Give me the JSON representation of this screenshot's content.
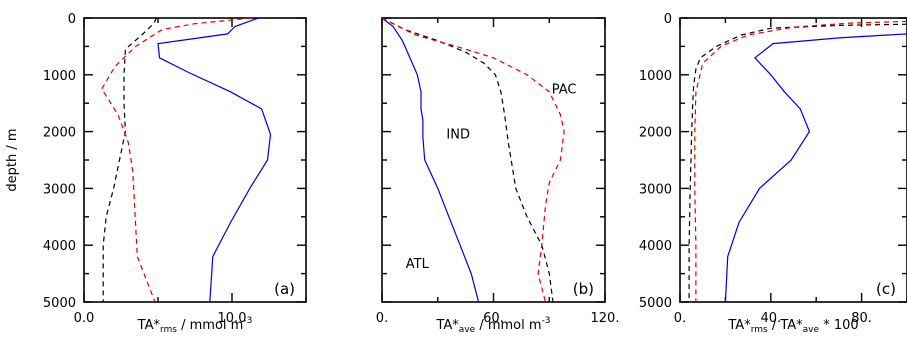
{
  "chart_data": [
    {
      "type": "line",
      "panel_label": "(a)",
      "xlabel_main": "TA*",
      "xlabel_sub": "rms",
      "xlabel_rest": " /  mmol m",
      "xlabel_sup": "-3",
      "ylabel": "depth / m",
      "xlim": [
        0,
        15
      ],
      "ylim": [
        5000,
        0
      ],
      "x_ticks": [
        {
          "v": 0,
          "label": "0.0"
        },
        {
          "v": 10,
          "label": "10.0"
        }
      ],
      "y_ticks": [
        {
          "v": 0,
          "label": "0"
        },
        {
          "v": 1000,
          "label": "1000"
        },
        {
          "v": 2000,
          "label": "2000"
        },
        {
          "v": 3000,
          "label": "3000"
        },
        {
          "v": 4000,
          "label": "4000"
        },
        {
          "v": 5000,
          "label": "5000"
        }
      ],
      "series": [
        {
          "key": "atl",
          "color": "#0000dd",
          "dash": "",
          "points": [
            [
              11.8,
              0
            ],
            [
              10.2,
              150
            ],
            [
              9.7,
              280
            ],
            [
              5.0,
              450
            ],
            [
              5.1,
              700
            ],
            [
              7.0,
              950
            ],
            [
              9.9,
              1300
            ],
            [
              12.0,
              1600
            ],
            [
              12.6,
              2050
            ],
            [
              12.4,
              2500
            ],
            [
              11.2,
              3000
            ],
            [
              9.9,
              3600
            ],
            [
              8.7,
              4200
            ],
            [
              8.5,
              5000
            ]
          ]
        },
        {
          "key": "ind",
          "color": "#000000",
          "dash": "5,4",
          "points": [
            [
              4.9,
              0
            ],
            [
              4.7,
              100
            ],
            [
              3.9,
              300
            ],
            [
              2.8,
              550
            ],
            [
              2.7,
              1000
            ],
            [
              2.7,
              1500
            ],
            [
              2.8,
              2000
            ],
            [
              2.4,
              2500
            ],
            [
              2.0,
              3000
            ],
            [
              1.5,
              3500
            ],
            [
              1.3,
              4000
            ],
            [
              1.3,
              5000
            ]
          ]
        },
        {
          "key": "pac",
          "color": "#dd0000",
          "dash": "5,4",
          "points": [
            [
              11.3,
              0
            ],
            [
              7.5,
              100
            ],
            [
              5.3,
              200
            ],
            [
              3.5,
              500
            ],
            [
              2.1,
              850
            ],
            [
              1.2,
              1250
            ],
            [
              2.3,
              1700
            ],
            [
              3.0,
              2200
            ],
            [
              3.3,
              2700
            ],
            [
              3.4,
              3200
            ],
            [
              3.5,
              3700
            ],
            [
              3.6,
              4200
            ],
            [
              4.2,
              4600
            ],
            [
              4.8,
              5000
            ]
          ]
        }
      ]
    },
    {
      "type": "line",
      "panel_label": "(b)",
      "xlabel_main": "TA*",
      "xlabel_sub": "ave",
      "xlabel_rest": " /  mmol m",
      "xlabel_sup": "-3",
      "xlim": [
        0,
        120
      ],
      "ylim": [
        5000,
        0
      ],
      "x_ticks": [
        {
          "v": 0,
          "label": "0."
        },
        {
          "v": 60,
          "label": "60."
        },
        {
          "v": 120,
          "label": "120."
        }
      ],
      "y_ticks": [
        {
          "v": 0
        },
        {
          "v": 1000
        },
        {
          "v": 2000
        },
        {
          "v": 3000
        },
        {
          "v": 4000
        },
        {
          "v": 5000
        }
      ],
      "series_labels": [
        {
          "text": "ATL",
          "color": "#0000dd",
          "x": 19,
          "y": 4400
        },
        {
          "text": "IND",
          "color": "#000000",
          "x": 41,
          "y": 2120
        },
        {
          "text": "PAC",
          "color": "#dd0000",
          "x": 98,
          "y": 1330
        }
      ],
      "series": [
        {
          "key": "atl",
          "color": "#0000dd",
          "dash": "",
          "points": [
            [
              0,
              0
            ],
            [
              6,
              150
            ],
            [
              11,
              400
            ],
            [
              15,
              700
            ],
            [
              19,
              1000
            ],
            [
              21,
              1300
            ],
            [
              21,
              1600
            ],
            [
              22,
              1800
            ],
            [
              22,
              2100
            ],
            [
              23,
              2500
            ],
            [
              30,
              3000
            ],
            [
              36,
              3500
            ],
            [
              42,
              4000
            ],
            [
              48,
              4500
            ],
            [
              52,
              5000
            ]
          ]
        },
        {
          "key": "ind",
          "color": "#000000",
          "dash": "5,4",
          "points": [
            [
              0,
              0
            ],
            [
              12,
              200
            ],
            [
              30,
              400
            ],
            [
              45,
              600
            ],
            [
              55,
              800
            ],
            [
              61,
              1000
            ],
            [
              64,
              1300
            ],
            [
              66,
              1700
            ],
            [
              68,
              2200
            ],
            [
              72,
              3000
            ],
            [
              78,
              3500
            ],
            [
              86,
              4000
            ],
            [
              90,
              4500
            ],
            [
              92,
              5000
            ]
          ]
        },
        {
          "key": "pac",
          "color": "#dd0000",
          "dash": "5,4",
          "points": [
            [
              0,
              0
            ],
            [
              18,
              300
            ],
            [
              40,
              500
            ],
            [
              60,
              700
            ],
            [
              78,
              1000
            ],
            [
              90,
              1300
            ],
            [
              96,
              1700
            ],
            [
              98,
              2000
            ],
            [
              96,
              2500
            ],
            [
              90,
              2900
            ],
            [
              88,
              3300
            ],
            [
              86,
              4000
            ],
            [
              84,
              4500
            ],
            [
              88,
              5000
            ]
          ]
        }
      ]
    },
    {
      "type": "line",
      "panel_label": "(c)",
      "xlabel_main": "TA*",
      "xlabel_sub": "rms",
      "xlabel_mid": " / TA*",
      "xlabel_sub2": "ave",
      "xlabel_rest": " * 100",
      "xlim": [
        0,
        100
      ],
      "ylim": [
        5000,
        0
      ],
      "x_ticks": [
        {
          "v": 0,
          "label": "0."
        },
        {
          "v": 40,
          "label": "40."
        },
        {
          "v": 80,
          "label": "80."
        }
      ],
      "y_ticks": [
        {
          "v": 0,
          "label": "0"
        },
        {
          "v": 1000,
          "label": "1000"
        },
        {
          "v": 2000,
          "label": "2000"
        },
        {
          "v": 3000,
          "label": "3000"
        },
        {
          "v": 4000,
          "label": "4000"
        },
        {
          "v": 5000,
          "label": "5000"
        }
      ],
      "series": [
        {
          "key": "atl",
          "color": "#0000dd",
          "dash": "",
          "points": [
            [
              100,
              280
            ],
            [
              70,
              350
            ],
            [
              41,
              450
            ],
            [
              33,
              700
            ],
            [
              40,
              1000
            ],
            [
              46,
              1300
            ],
            [
              53,
              1600
            ],
            [
              57,
              2000
            ],
            [
              49,
              2500
            ],
            [
              35,
              3000
            ],
            [
              26,
              3600
            ],
            [
              21,
              4200
            ],
            [
              20,
              5000
            ]
          ]
        },
        {
          "key": "ind",
          "color": "#000000",
          "dash": "5,4",
          "points": [
            [
              100,
              110
            ],
            [
              70,
              130
            ],
            [
              40,
              180
            ],
            [
              27,
              300
            ],
            [
              16,
              500
            ],
            [
              9,
              700
            ],
            [
              7,
              900
            ],
            [
              6,
              1200
            ],
            [
              5.5,
              1600
            ],
            [
              5,
              2200
            ],
            [
              4.5,
              3000
            ],
            [
              4,
              4000
            ],
            [
              4,
              5000
            ]
          ]
        },
        {
          "key": "pac",
          "color": "#dd0000",
          "dash": "5,4",
          "points": [
            [
              100,
              60
            ],
            [
              75,
              90
            ],
            [
              50,
              160
            ],
            [
              30,
              300
            ],
            [
              18,
              500
            ],
            [
              10,
              800
            ],
            [
              7,
              1300
            ],
            [
              6.5,
              2000
            ],
            [
              6.5,
              3000
            ],
            [
              7,
              4000
            ],
            [
              7,
              5000
            ]
          ]
        }
      ]
    }
  ]
}
